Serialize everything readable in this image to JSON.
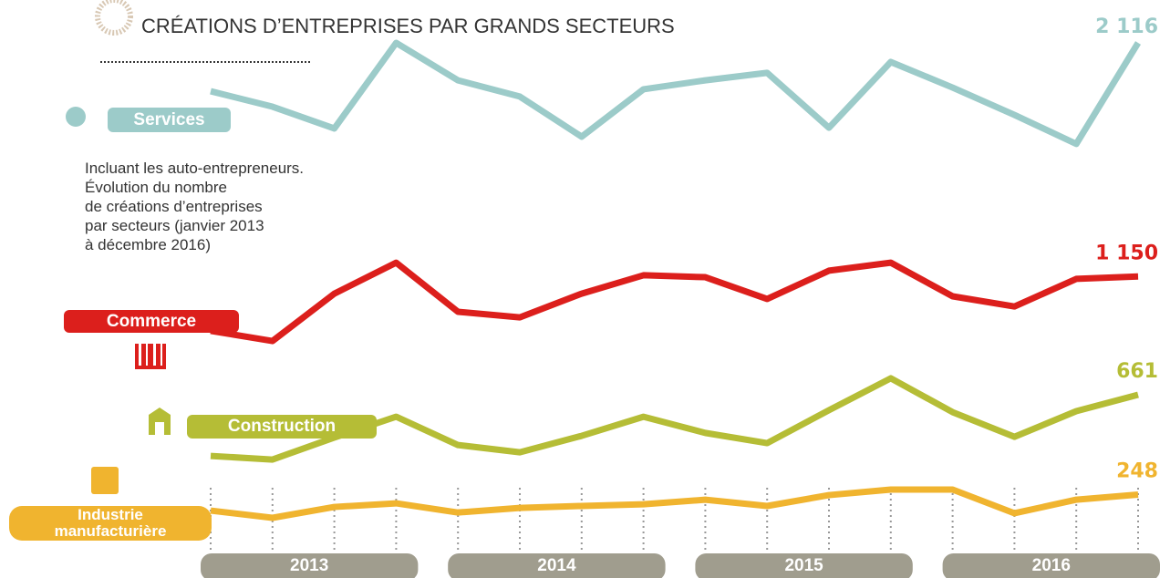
{
  "chart_data": {
    "type": "line",
    "title": "CRÉATIONS D’ENTREPRISES PAR GRANDS SECTEURS",
    "note": [
      "Incluant les auto-entrepreneurs.",
      "Évolution du nombre",
      "de créations d’entreprises",
      "par secteurs (janvier 2013",
      "à décembre 2016)"
    ],
    "categories": [
      null,
      null,
      null,
      null,
      null,
      null,
      null,
      null,
      null,
      null,
      null,
      null,
      null,
      null,
      null,
      null
    ],
    "years": [
      "2013",
      "2014",
      "2015",
      "2016"
    ],
    "series": [
      {
        "name": "Services",
        "color": "#9ccbc9",
        "values": [
          1916,
          1852,
          1762,
          2116,
          1961,
          1894,
          1728,
          1924,
          1961,
          1992,
          1765,
          2037,
          1931,
          1818,
          1698,
          2116
        ],
        "value_labels": [
          null,
          null,
          null,
          null,
          null,
          null,
          null,
          null,
          null,
          null,
          null,
          null,
          null,
          null,
          null,
          "2 116"
        ]
      },
      {
        "name": "Commerce",
        "color": "#dc1f1c",
        "values": [
          925,
          883,
          1079,
          1207,
          1004,
          981,
          1079,
          1155,
          1147,
          1057,
          1174,
          1207,
          1068,
          1026,
          1140,
          1150
        ],
        "value_labels": [
          null,
          null,
          null,
          null,
          null,
          null,
          null,
          null,
          null,
          null,
          null,
          null,
          null,
          null,
          null,
          "1 150"
        ]
      },
      {
        "name": "Construction",
        "color": "#b5bd36",
        "values": [
          408,
          393,
          484,
          570,
          453,
          423,
          491,
          570,
          503,
          461,
          597,
          729,
          589,
          487,
          593,
          661
        ]
      },
      {
        "name": "Industrie manufacturière",
        "color": "#f0b42f",
        "values": [
          182,
          152,
          197,
          212,
          174,
          193,
          201,
          208,
          227,
          201,
          246,
          269,
          269,
          171,
          227,
          248
        ]
      }
    ]
  }
}
